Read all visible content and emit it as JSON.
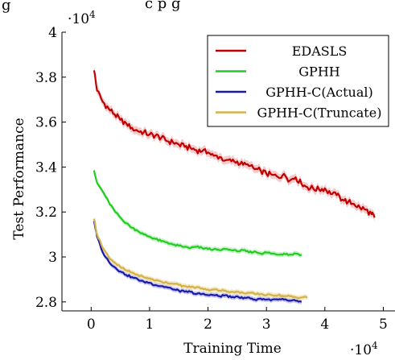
{
  "top_text_fragment": "g",
  "top_text_fragment_right": "c  p     g",
  "chart_data": {
    "type": "line",
    "xlabel": "Training Time",
    "ylabel": "Test Performance",
    "x_multiplier": "·10",
    "x_multiplier_exp": "4",
    "y_multiplier": "·10",
    "y_multiplier_exp": "4",
    "xlim": [
      -5000,
      52000
    ],
    "ylim": [
      27600,
      40000
    ],
    "x_ticks": [
      0,
      10000,
      20000,
      30000,
      40000,
      50000
    ],
    "x_tick_labels": [
      "0",
      "1",
      "2",
      "3",
      "4",
      "5"
    ],
    "y_ticks": [
      28000,
      30000,
      32000,
      34000,
      36000,
      38000,
      40000
    ],
    "y_tick_labels": [
      "2.8",
      "3",
      "3.2",
      "3.4",
      "3.6",
      "3.8",
      "4"
    ],
    "grid": false,
    "legend_position": "top-right",
    "series": [
      {
        "name": "EDASLS",
        "color": "#c00000",
        "band_color": "#f2b8b8",
        "x": [
          500,
          1000,
          2000,
          3000,
          4000,
          5000,
          6000,
          7000,
          8000,
          9000,
          10000,
          11000,
          12000,
          13000,
          14000,
          15000,
          16000,
          17000,
          18000,
          19000,
          20000,
          21000,
          22000,
          23000,
          24000,
          25000,
          26000,
          27000,
          28000,
          29000,
          30000,
          31000,
          32000,
          33000,
          34000,
          35000,
          36000,
          37000,
          38000,
          39000,
          40000,
          41000,
          42000,
          43000,
          44000,
          45000,
          46000,
          47000,
          48000,
          48500
        ],
        "y": [
          38300,
          37400,
          36900,
          36600,
          36350,
          36100,
          35950,
          35750,
          35600,
          35550,
          35450,
          35400,
          35300,
          35150,
          35100,
          35000,
          34900,
          34850,
          34750,
          34700,
          34650,
          34500,
          34450,
          34300,
          34250,
          34250,
          34100,
          34050,
          33900,
          33850,
          33700,
          33650,
          33550,
          33700,
          33400,
          33550,
          33250,
          33100,
          33050,
          33000,
          33050,
          32800,
          32750,
          32550,
          32450,
          32350,
          32200,
          32100,
          31900,
          31750
        ]
      },
      {
        "name": "GPHH",
        "color": "#22cc22",
        "band_color": "#b6ecb6",
        "x": [
          500,
          1000,
          2000,
          3000,
          4000,
          5000,
          6000,
          7000,
          8000,
          9000,
          10000,
          11000,
          12000,
          13000,
          14000,
          15000,
          16000,
          17000,
          18000,
          19000,
          20000,
          21000,
          22000,
          23000,
          24000,
          25000,
          26000,
          27000,
          28000,
          29000,
          30000,
          31000,
          32000,
          33000,
          34000,
          35000,
          36000
        ],
        "y": [
          33850,
          33300,
          32900,
          32450,
          32050,
          31750,
          31500,
          31300,
          31150,
          31000,
          30900,
          30800,
          30700,
          30650,
          30550,
          30500,
          30450,
          30400,
          30450,
          30400,
          30350,
          30350,
          30300,
          30350,
          30300,
          30250,
          30300,
          30200,
          30250,
          30150,
          30200,
          30150,
          30100,
          30150,
          30100,
          30150,
          30100
        ]
      },
      {
        "name": "GPHH-C(Actual)",
        "color": "#1a1aa8",
        "band_color": "#b4b4ee",
        "x": [
          500,
          1000,
          2000,
          3000,
          4000,
          5000,
          6000,
          7000,
          8000,
          9000,
          10000,
          11000,
          12000,
          13000,
          14000,
          15000,
          16000,
          17000,
          18000,
          19000,
          20000,
          21000,
          22000,
          23000,
          24000,
          25000,
          26000,
          27000,
          28000,
          29000,
          30000,
          31000,
          32000,
          33000,
          34000,
          35000,
          36000
        ],
        "y": [
          31600,
          30900,
          30200,
          29800,
          29550,
          29350,
          29200,
          29100,
          29000,
          28900,
          28850,
          28750,
          28700,
          28650,
          28550,
          28500,
          28450,
          28450,
          28350,
          28350,
          28300,
          28300,
          28250,
          28300,
          28200,
          28250,
          28150,
          28200,
          28100,
          28150,
          28100,
          28100,
          28100,
          28100,
          28050,
          28050,
          28000
        ]
      },
      {
        "name": "GPHH-C(Truncate)",
        "color": "#d4b24a",
        "band_color": "#efe2ae",
        "x": [
          500,
          1000,
          2000,
          3000,
          4000,
          5000,
          6000,
          7000,
          8000,
          9000,
          10000,
          11000,
          12000,
          13000,
          14000,
          15000,
          16000,
          17000,
          18000,
          19000,
          20000,
          21000,
          22000,
          23000,
          24000,
          25000,
          26000,
          27000,
          28000,
          29000,
          30000,
          31000,
          32000,
          33000,
          34000,
          35000,
          36000,
          37000
        ],
        "y": [
          31700,
          31000,
          30400,
          30000,
          29750,
          29550,
          29400,
          29300,
          29200,
          29100,
          29050,
          28950,
          28900,
          28850,
          28800,
          28750,
          28700,
          28650,
          28650,
          28600,
          28550,
          28550,
          28500,
          28500,
          28450,
          28450,
          28400,
          28400,
          28350,
          28350,
          28300,
          28300,
          28300,
          28250,
          28250,
          28200,
          28200,
          28200
        ]
      }
    ]
  }
}
